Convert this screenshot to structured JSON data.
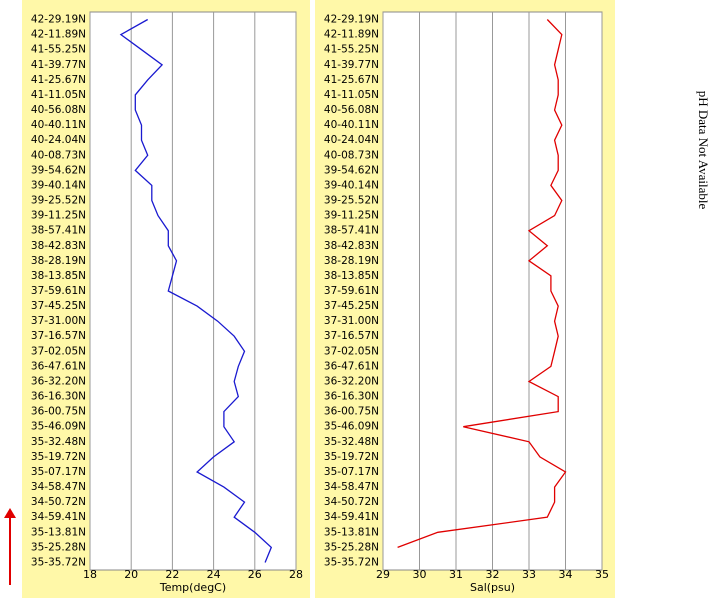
{
  "chart_data": [
    {
      "type": "line",
      "x_label": "Temp(degC)",
      "categories": [
        "42-29.19N",
        "42-11.89N",
        "41-55.25N",
        "41-39.77N",
        "41-25.67N",
        "41-11.05N",
        "40-56.08N",
        "40-40.11N",
        "40-24.04N",
        "40-08.73N",
        "39-54.62N",
        "39-40.14N",
        "39-25.52N",
        "39-11.25N",
        "38-57.41N",
        "38-42.83N",
        "38-28.19N",
        "38-13.85N",
        "37-59.61N",
        "37-45.25N",
        "37-31.00N",
        "37-16.57N",
        "37-02.05N",
        "36-47.61N",
        "36-32.20N",
        "36-16.30N",
        "36-00.75N",
        "35-46.09N",
        "35-32.48N",
        "35-19.72N",
        "35-07.17N",
        "34-58.47N",
        "34-50.72N",
        "34-59.41N",
        "35-13.81N",
        "35-25.28N",
        "35-35.72N"
      ],
      "series": [
        {
          "color": "#1a1ad0",
          "values": [
            20.8,
            19.5,
            20.5,
            21.5,
            20.8,
            20.2,
            20.2,
            20.5,
            20.5,
            20.8,
            20.2,
            21.0,
            21.0,
            21.3,
            21.8,
            21.8,
            22.2,
            22.0,
            21.8,
            23.2,
            24.2,
            25.0,
            25.5,
            25.2,
            25.0,
            25.2,
            24.5,
            24.5,
            25.0,
            24.0,
            23.2,
            24.5,
            25.5,
            25.0,
            26.0,
            26.8,
            26.5
          ]
        }
      ],
      "xlim": [
        18,
        28
      ],
      "xticks": [
        18,
        20,
        22,
        24,
        26,
        28
      ],
      "grid": true
    },
    {
      "type": "line",
      "x_label": "Sal(psu)",
      "categories": [
        "42-29.19N",
        "42-11.89N",
        "41-55.25N",
        "41-39.77N",
        "41-25.67N",
        "41-11.05N",
        "40-56.08N",
        "40-40.11N",
        "40-24.04N",
        "40-08.73N",
        "39-54.62N",
        "39-40.14N",
        "39-25.52N",
        "39-11.25N",
        "38-57.41N",
        "38-42.83N",
        "38-28.19N",
        "38-13.85N",
        "37-59.61N",
        "37-45.25N",
        "37-31.00N",
        "37-16.57N",
        "37-02.05N",
        "36-47.61N",
        "36-32.20N",
        "36-16.30N",
        "36-00.75N",
        "35-46.09N",
        "35-32.48N",
        "35-19.72N",
        "35-07.17N",
        "34-58.47N",
        "34-50.72N",
        "34-59.41N",
        "35-13.81N",
        "35-25.28N",
        "35-35.72N"
      ],
      "series": [
        {
          "color": "#e00000",
          "values": [
            33.5,
            33.9,
            33.8,
            33.7,
            33.8,
            33.8,
            33.7,
            33.9,
            33.7,
            33.8,
            33.8,
            33.6,
            33.9,
            33.7,
            33.0,
            33.5,
            33.0,
            33.6,
            33.6,
            33.8,
            33.7,
            33.8,
            33.7,
            33.6,
            33.0,
            33.8,
            33.8,
            31.2,
            33.0,
            33.3,
            34.0,
            33.7,
            33.7,
            33.5,
            30.5,
            29.4,
            null
          ]
        }
      ],
      "xlim": [
        29,
        35
      ],
      "xticks": [
        29,
        30,
        31,
        32,
        33,
        34,
        35
      ],
      "grid": true
    }
  ],
  "note": "pH Data Not Available"
}
